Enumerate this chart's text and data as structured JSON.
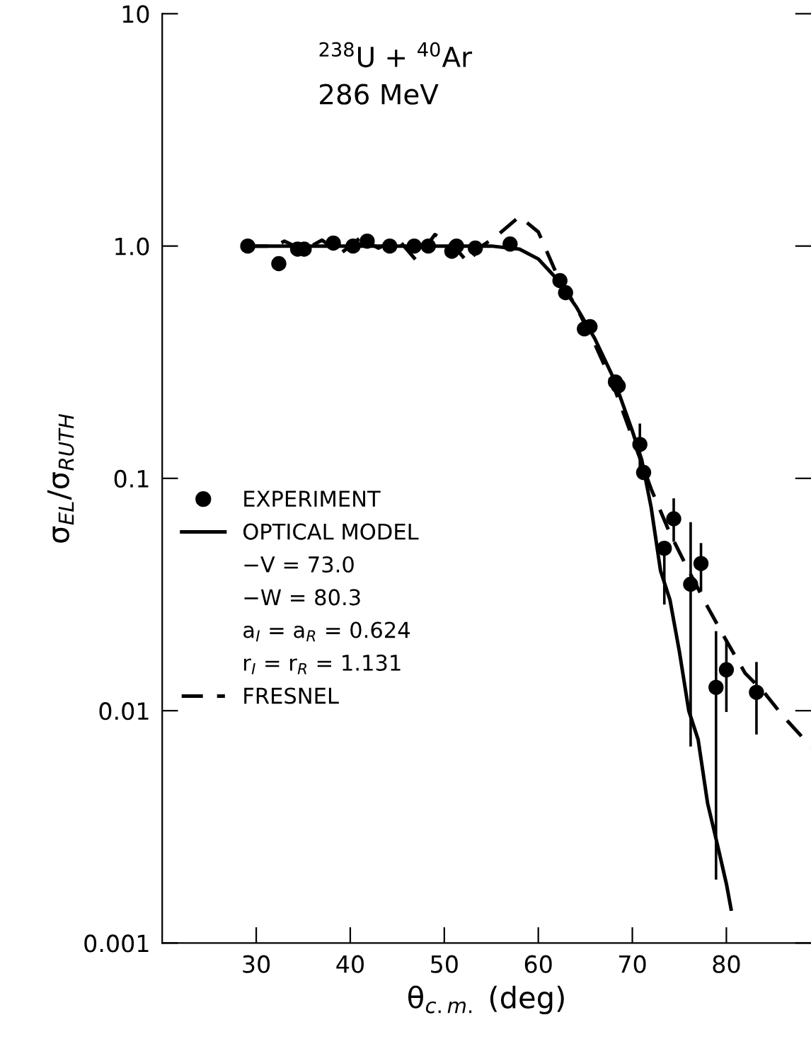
{
  "chart_data": {
    "type": "scatter",
    "xlabel": "θ$_{c.m.}$ (deg)",
    "ylabel": "σ$_{EL}$/σ$_{RUTH}$",
    "annotations": [
      "$^{238}$U + $^{40}$Ar\n286 MeV",
      "−V = 73.0",
      "−W = 80.3",
      "a$_{I}$ = a$_{R}$ = 0.624",
      "r$_{I}$ = r$_{R}$ = 1.131"
    ],
    "log": "y",
    "xlim": [
      20,
      89
    ],
    "ylim": [
      0.001,
      10
    ],
    "xticks": [
      30,
      40,
      50,
      60,
      70,
      80
    ],
    "yticks": [
      {
        "value": 0.001,
        "label": "0.001"
      },
      {
        "value": 0.01,
        "label": "0.01"
      },
      {
        "value": 0.1,
        "label": "0.1"
      },
      {
        "value": 1,
        "label": "1.0"
      },
      {
        "value": 10,
        "label": "10"
      }
    ],
    "grid": false,
    "legend": "left",
    "series": [
      {
        "name": "EXPERIMENT",
        "marker": "circle",
        "color": "#000000",
        "x": [
          29.1,
          32.4,
          34.4,
          35.1,
          38.2,
          40.3,
          41.8,
          44.2,
          46.8,
          48.3,
          50.8,
          51.3,
          53.3,
          57.0,
          62.3,
          62.9,
          64.9,
          65.5,
          68.2,
          68.5,
          70.8,
          71.2,
          73.4,
          74.4,
          76.2,
          77.3,
          78.9,
          80.0,
          83.2
        ],
        "values": [
          1.0,
          0.84,
          0.97,
          0.97,
          1.03,
          1.0,
          1.05,
          1.0,
          1.0,
          1.0,
          0.95,
          1.0,
          0.98,
          1.02,
          0.71,
          0.63,
          0.44,
          0.45,
          0.26,
          0.25,
          0.14,
          0.106,
          0.05,
          0.067,
          0.035,
          0.043,
          0.0126,
          0.015,
          0.012
        ],
        "errors": [
          null,
          null,
          null,
          null,
          null,
          null,
          null,
          null,
          null,
          null,
          null,
          null,
          null,
          null,
          null,
          null,
          null,
          null,
          null,
          null,
          [
            0.11,
            0.17
          ],
          null,
          [
            0.029,
            0.053
          ],
          [
            0.054,
            0.081
          ],
          [
            0.0071,
            0.064
          ],
          [
            0.033,
            0.052
          ],
          [
            0.0019,
            0.0217
          ],
          [
            0.01,
            0.02
          ],
          [
            0.008,
            0.016
          ]
        ]
      },
      {
        "name": "OPTICAL MODEL",
        "type": "line",
        "line_style": "solid",
        "color": "#000000",
        "x": [
          29,
          55,
          58,
          60,
          62,
          64,
          66,
          68,
          70,
          71,
          72,
          73,
          74,
          75,
          76,
          77,
          78,
          79,
          80,
          80.5
        ],
        "values": [
          1.0,
          1.0,
          0.97,
          0.88,
          0.72,
          0.55,
          0.4,
          0.27,
          0.16,
          0.12,
          0.075,
          0.04,
          0.03,
          0.018,
          0.01,
          0.0075,
          0.004,
          0.0027,
          0.0018,
          0.0014
        ]
      },
      {
        "name": "FRESNEL",
        "type": "line",
        "line_style": "dashed",
        "color": "#000000",
        "x": [
          29,
          32,
          33,
          35,
          37,
          39,
          41,
          43,
          45,
          47,
          49,
          51,
          52.5,
          54,
          55.5,
          58,
          60,
          62,
          64,
          66,
          68,
          70,
          72,
          74,
          76,
          78,
          80,
          82,
          84,
          86,
          89
        ],
        "values": [
          1.0,
          1.0,
          1.05,
          0.96,
          1.06,
          0.93,
          1.08,
          0.98,
          1.08,
          0.87,
          1.12,
          1.0,
          0.85,
          1.0,
          1.1,
          1.34,
          1.15,
          0.75,
          0.55,
          0.38,
          0.25,
          0.15,
          0.09,
          0.058,
          0.04,
          0.028,
          0.02,
          0.0145,
          0.012,
          0.0095,
          0.007
        ]
      }
    ]
  }
}
